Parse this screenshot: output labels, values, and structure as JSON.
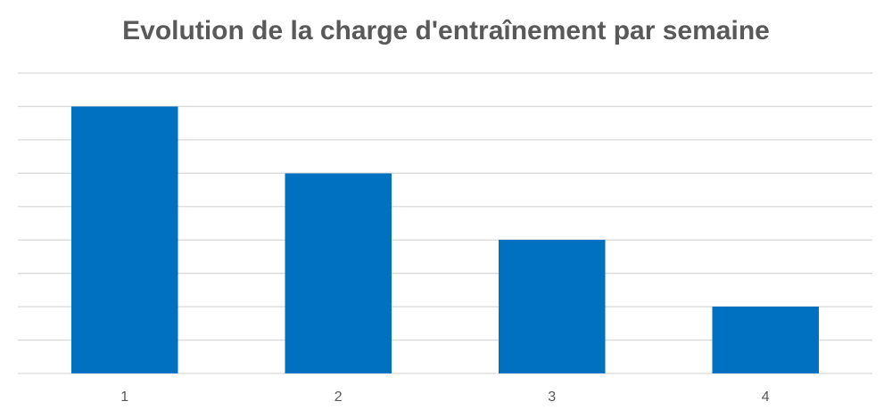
{
  "chart_data": {
    "type": "bar",
    "title": "Evolution de la charge d'entraînement par semaine",
    "categories": [
      "1",
      "2",
      "3",
      "4"
    ],
    "series": [
      {
        "values": [
          8,
          6,
          4,
          2
        ]
      }
    ],
    "xlabel": "",
    "ylabel": "",
    "ylim": [
      0,
      9
    ],
    "grid": true,
    "y_tick_labels_visible": false,
    "legend": "none",
    "colors": {
      "bar": "#0070C0",
      "grid": "#D9D9D9",
      "text": "#595959"
    }
  }
}
